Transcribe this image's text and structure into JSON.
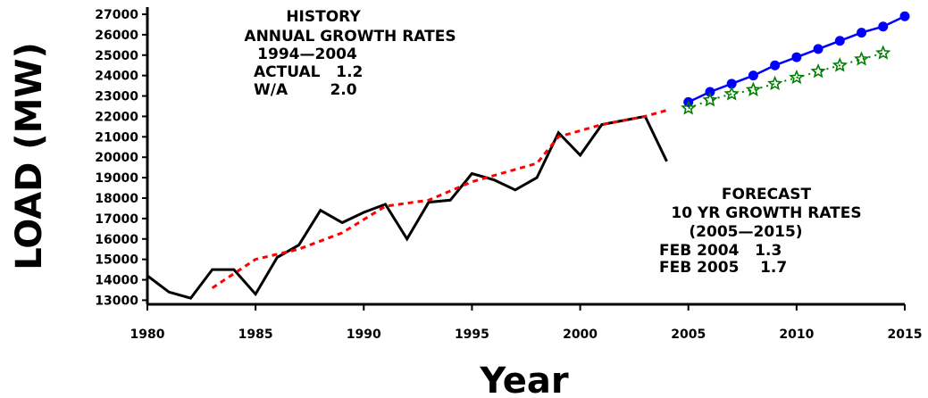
{
  "chart_data": {
    "type": "line",
    "xlabel": "Year",
    "ylabel": "LOAD (MW)",
    "xlim": [
      1980,
      2015
    ],
    "ylim": [
      12800,
      27000
    ],
    "x_ticks": [
      1980,
      1985,
      1990,
      1995,
      2000,
      2005,
      2010,
      2015
    ],
    "y_ticks": [
      13000,
      14000,
      15000,
      16000,
      17000,
      18000,
      19000,
      20000,
      21000,
      22000,
      23000,
      24000,
      25000,
      26000,
      27000
    ],
    "grid": false,
    "series": [
      {
        "style": "solid",
        "color": "#000000",
        "x": [
          1980,
          1981,
          1982,
          1983,
          1984,
          1985,
          1986,
          1987,
          1988,
          1989,
          1990,
          1991,
          1992,
          1993,
          1994,
          1995,
          1996,
          1997,
          1998,
          1999,
          2000,
          2001,
          2002,
          2003,
          2004
        ],
        "values": [
          14200,
          13400,
          13100,
          14500,
          14500,
          13300,
          15100,
          15700,
          17400,
          16800,
          17300,
          17700,
          16000,
          17800,
          17900,
          19200,
          18900,
          18400,
          19000,
          21200,
          20100,
          21600,
          21800,
          22000,
          19800
        ]
      },
      {
        "style": "dashed",
        "color": "#ff0000",
        "x": [
          1983,
          1985,
          1987,
          1989,
          1991,
          1993,
          1995,
          1997,
          1998,
          1999,
          2001,
          2003,
          2004
        ],
        "values": [
          13600,
          15000,
          15500,
          16300,
          17600,
          17900,
          18800,
          19400,
          19700,
          21000,
          21600,
          22000,
          22300
        ]
      },
      {
        "style": "solid-markers",
        "marker": "circle",
        "color": "#0000ff",
        "x": [
          2005,
          2006,
          2007,
          2008,
          2009,
          2010,
          2011,
          2012,
          2013,
          2014,
          2015
        ],
        "values": [
          22700,
          23200,
          23600,
          24000,
          24500,
          24900,
          25300,
          25700,
          26100,
          26400,
          26900
        ]
      },
      {
        "style": "dotted-markers",
        "marker": "star",
        "color": "#008000",
        "x": [
          2005,
          2006,
          2007,
          2008,
          2009,
          2010,
          2011,
          2012,
          2013,
          2014
        ],
        "values": [
          22400,
          22800,
          23100,
          23300,
          23600,
          23900,
          24200,
          24500,
          24800,
          25100
        ]
      }
    ],
    "annotations": {
      "history": [
        "HISTORY",
        "ANNUAL GROWTH RATES",
        "1994—2004",
        "ACTUAL   1.2",
        "W/A        2.0"
      ],
      "forecast": [
        "FORECAST",
        "10 YR GROWTH RATES",
        "(2005—2015)",
        "FEB 2004   1.3",
        "FEB 2005    1.7"
      ]
    }
  }
}
